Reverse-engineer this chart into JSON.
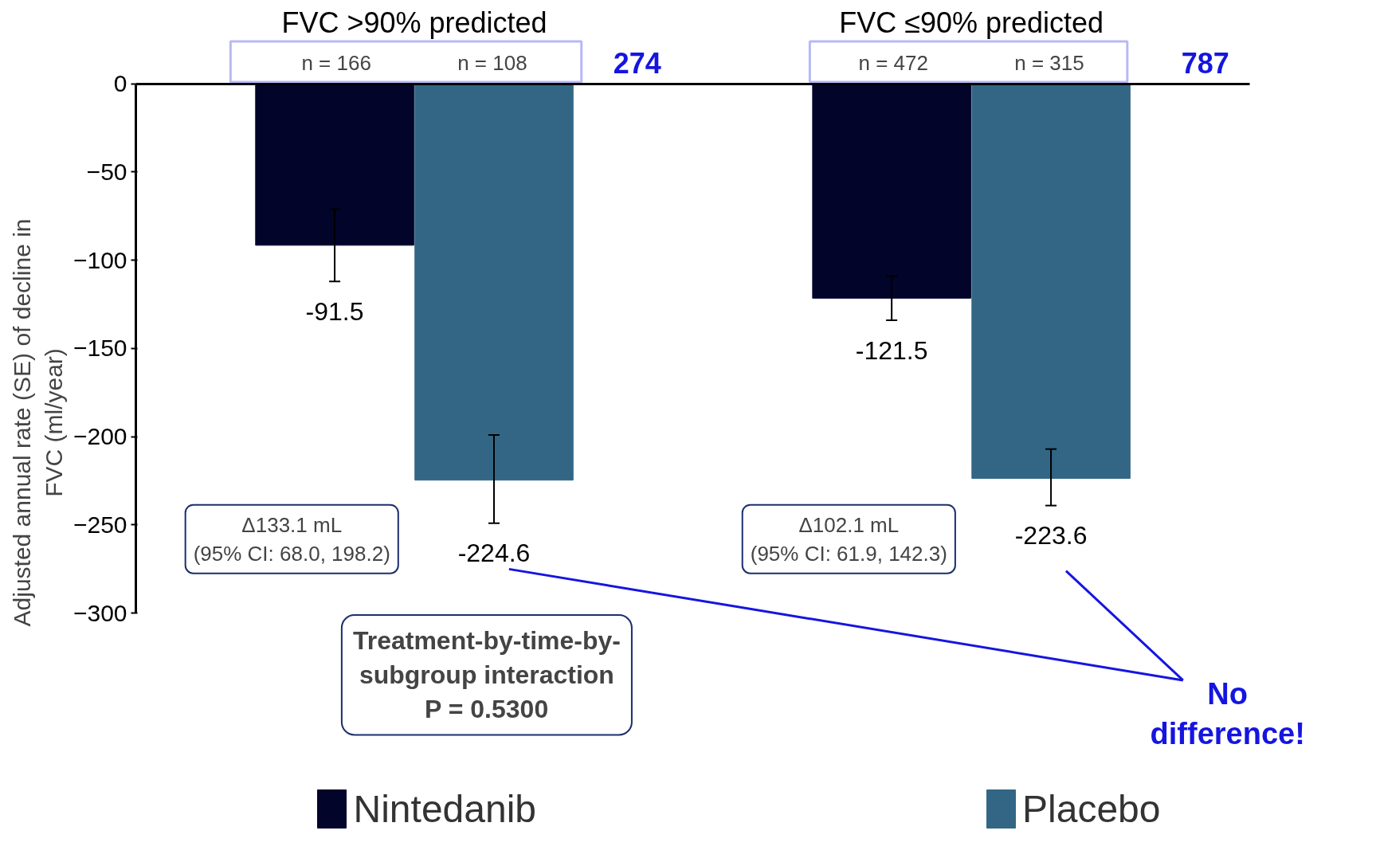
{
  "chart_data": {
    "type": "bar",
    "categories": [
      "FVC >90% predicted",
      "FVC ≤90% predicted"
    ],
    "ylabel": "Adjusted annual rate (SE) of decline in\nFVC (ml/year)",
    "series": [
      {
        "name": "Nintedanib",
        "color": "#02042a",
        "values": [
          -91.5,
          -121.5
        ],
        "errors": [
          [
            -112,
            -71
          ],
          [
            -134,
            -109
          ]
        ]
      },
      {
        "name": "Placebo",
        "color": "#336685",
        "values": [
          -224.6,
          -223.6
        ],
        "errors": [
          [
            -249,
            -199
          ],
          [
            -239,
            -207
          ]
        ]
      }
    ],
    "ylim": [
      -300,
      0
    ],
    "yticks": [
      0,
      -50,
      -100,
      -150,
      -200,
      -250,
      -300
    ],
    "data_labels": true,
    "grid": false,
    "legend": "bottom",
    "annotations": [
      "n = 166",
      "n = 108",
      "274",
      "n = 472",
      "n = 315",
      "787",
      "Δ133.1 mL\n(95% CI: 68.0, 198.2)",
      "Δ102.1 mL\n(95% CI: 61.9, 142.3)",
      "Treatment-by-time-by-\nsubgroup interaction\nP = 0.5300",
      "No\ndifference!"
    ]
  }
}
